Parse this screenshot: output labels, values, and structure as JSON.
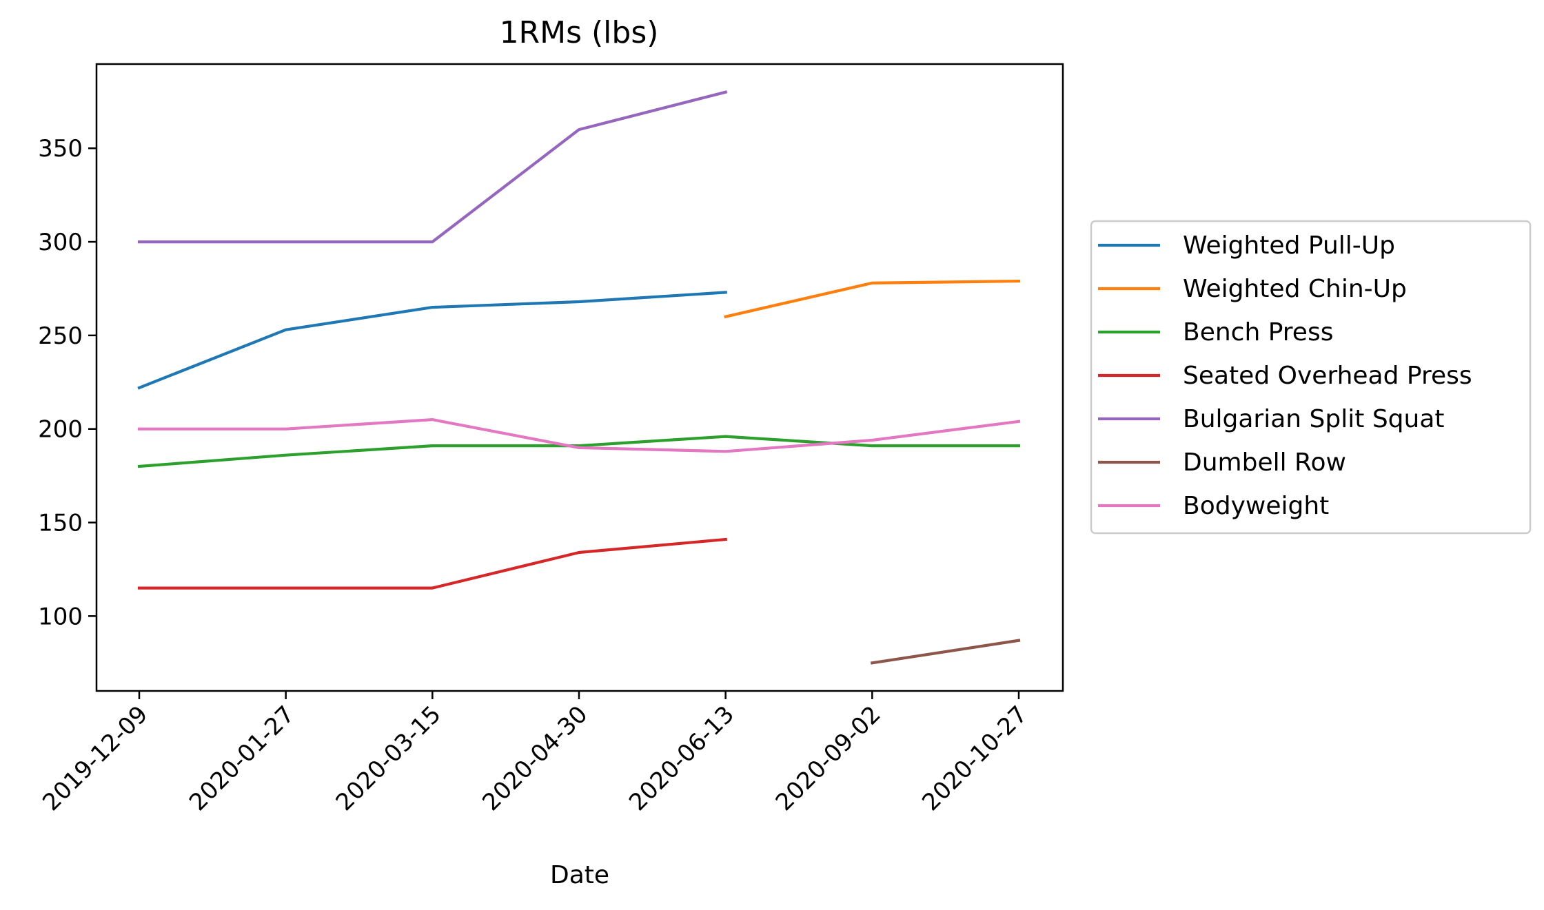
{
  "chart_data": {
    "type": "line",
    "title": "1RMs (lbs)",
    "xlabel": "Date",
    "ylabel": "",
    "categories": [
      "2019-12-09",
      "2020-01-27",
      "2020-03-15",
      "2020-04-30",
      "2020-06-13",
      "2020-09-02",
      "2020-10-27"
    ],
    "ylim": [
      60,
      395
    ],
    "yticks": [
      100,
      150,
      200,
      250,
      300,
      350
    ],
    "ytick_labels": [
      "100",
      "150",
      "200",
      "250",
      "300",
      "350"
    ],
    "grid": false,
    "legend_position": "right",
    "series": [
      {
        "name": "Weighted Pull-Up",
        "color": "#1f77b4",
        "values": [
          222,
          253,
          265,
          268,
          273,
          null,
          null
        ]
      },
      {
        "name": "Weighted Chin-Up",
        "color": "#ff7f0e",
        "values": [
          null,
          null,
          null,
          null,
          260,
          278,
          279
        ]
      },
      {
        "name": "Bench Press",
        "color": "#2ca02c",
        "values": [
          180,
          186,
          191,
          191,
          196,
          191,
          191
        ]
      },
      {
        "name": "Seated Overhead Press",
        "color": "#d62728",
        "values": [
          115,
          115,
          115,
          134,
          141,
          null,
          null
        ]
      },
      {
        "name": "Bulgarian Split Squat",
        "color": "#9467bd",
        "values": [
          300,
          300,
          300,
          360,
          380,
          null,
          null
        ]
      },
      {
        "name": "Dumbell Row",
        "color": "#8c564b",
        "values": [
          null,
          null,
          null,
          null,
          null,
          75,
          87
        ]
      },
      {
        "name": "Bodyweight",
        "color": "#e377c2",
        "values": [
          200,
          200,
          205,
          190,
          188,
          194,
          204
        ]
      }
    ]
  }
}
